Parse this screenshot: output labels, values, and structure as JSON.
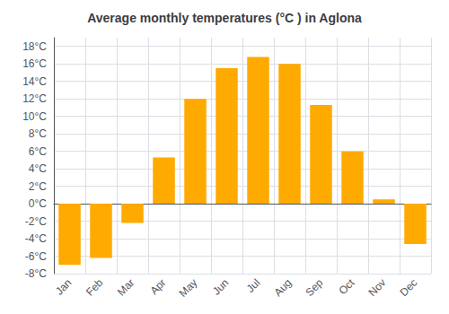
{
  "chart_data": {
    "type": "bar",
    "title": "Average monthly temperatures (°C ) in Aglona",
    "categories": [
      "Jan",
      "Feb",
      "Mar",
      "Apr",
      "May",
      "Jun",
      "Jul",
      "Aug",
      "Sep",
      "Oct",
      "Nov",
      "Dec"
    ],
    "values": [
      -7.0,
      -6.2,
      -2.2,
      5.3,
      12.0,
      15.5,
      16.8,
      16.0,
      11.3,
      6.0,
      0.5,
      -4.6
    ],
    "color": "#FFAA00",
    "ylim": [
      -8,
      19
    ],
    "yticks": [
      {
        "value": -8,
        "label": "-8°C"
      },
      {
        "value": -6,
        "label": "-6°C"
      },
      {
        "value": -4,
        "label": "-4°C"
      },
      {
        "value": -2,
        "label": "-2°C"
      },
      {
        "value": 0,
        "label": "0°C"
      },
      {
        "value": 2,
        "label": "2°C"
      },
      {
        "value": 4,
        "label": "4°C"
      },
      {
        "value": 6,
        "label": "6°C"
      },
      {
        "value": 8,
        "label": "8°C"
      },
      {
        "value": 10,
        "label": "10°C"
      },
      {
        "value": 12,
        "label": "12°C"
      },
      {
        "value": 14,
        "label": "14°C"
      },
      {
        "value": 16,
        "label": "16°C"
      },
      {
        "value": 18,
        "label": "18°C"
      }
    ],
    "grid": true
  }
}
